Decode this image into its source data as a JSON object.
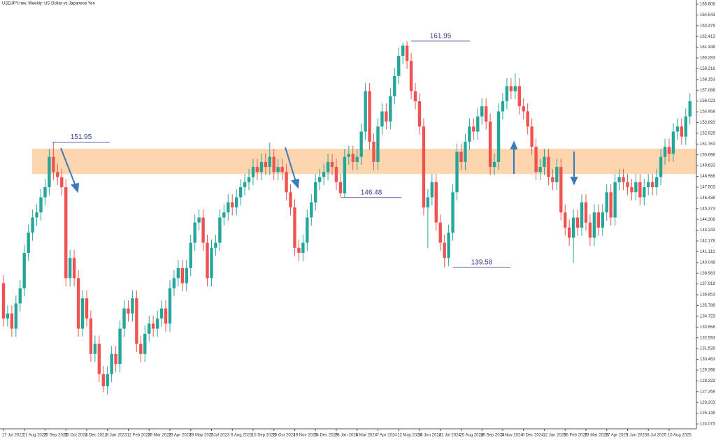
{
  "chart_data": {
    "type": "candlestick",
    "title": "USDJPY.raw, Weekly: US Dollar vs Japanese Yen",
    "categories": [
      "17 Jul 2022",
      null,
      null,
      null,
      null,
      "21 Aug 2022",
      null,
      null,
      null,
      null,
      "25 Sep 2022",
      null,
      null,
      null,
      null,
      "30 Oct 2022",
      null,
      null,
      null,
      null,
      "4 Dec 2022",
      null,
      null,
      null,
      null,
      "8 Jan 2023",
      null,
      null,
      null,
      null,
      "12 Feb 2023",
      null,
      null,
      null,
      null,
      "19 Mar 2023",
      null,
      null,
      null,
      null,
      "23 Apr 2023",
      null,
      null,
      null,
      null,
      "28 May 2023",
      null,
      null,
      null,
      null,
      "2 Jul 2023",
      null,
      null,
      null,
      null,
      "6 Aug 2023",
      null,
      null,
      null,
      null,
      "10 Sep 2023",
      null,
      null,
      null,
      null,
      "15 Oct 2023",
      null,
      null,
      null,
      null,
      "19 Nov 2023",
      null,
      null,
      null,
      null,
      "24 Dec 2023",
      null,
      null,
      null,
      null,
      "28 Jan 2024",
      null,
      null,
      null,
      null,
      "3 Mar 2024",
      null,
      null,
      null,
      null,
      "7 Apr 2024",
      null,
      null,
      null,
      null,
      "12 May 2024",
      null,
      null,
      null,
      null,
      "16 Jun 2024",
      null,
      null,
      null,
      null,
      "21 Jul 2024",
      null,
      null,
      null,
      null,
      "25 Aug 2024",
      null,
      null,
      null,
      null,
      "29 Sep 2024",
      null,
      null,
      null,
      null,
      "3 Nov 2024",
      null,
      null,
      null,
      null,
      "8 Dec 2024",
      null,
      null,
      null,
      null,
      "12 Jan 2025",
      null,
      null,
      null,
      null,
      "16 Feb 2025",
      null,
      null,
      null,
      null,
      "23 Mar 2025",
      null,
      null,
      null,
      null,
      "27 Apr 2025",
      null,
      null,
      null,
      null,
      "1 Jun 2025",
      null,
      null,
      null,
      null,
      "6 Jul 2025",
      null,
      null,
      null,
      null,
      "10 Aug 2025",
      null,
      null,
      null,
      null,
      null
    ],
    "open": [
      138,
      134.5,
      135,
      133.5,
      136,
      137.5,
      141,
      143,
      144.5,
      145,
      146.5,
      147.5,
      150.5,
      149,
      148.5,
      147.5,
      138.5,
      140.5,
      138.5,
      133.5,
      136.5,
      134.5,
      131,
      132,
      129,
      127.8,
      129,
      131,
      130,
      133.5,
      135.5,
      135,
      136.5,
      132,
      131,
      133,
      134,
      133.5,
      134.5,
      135.5,
      134,
      137.5,
      138.5,
      139.5,
      138,
      139.5,
      142,
      144,
      144.5,
      142,
      138.5,
      141.5,
      142,
      144.5,
      145,
      146,
      145.5,
      146.5,
      147.5,
      148,
      148.5,
      149.5,
      149,
      150,
      149.5,
      150.5,
      149,
      149.5,
      149,
      147,
      145.5,
      141.5,
      141,
      142,
      144.5,
      146,
      148,
      148.5,
      149,
      150,
      149.5,
      148,
      146.9,
      150.5,
      150.8,
      150,
      150.5,
      153,
      157,
      152,
      150,
      153.5,
      155,
      154,
      156.5,
      158.5,
      160.5,
      161.5,
      160,
      157,
      156,
      153.5,
      145.5,
      146.5,
      148,
      144,
      142,
      140.5,
      143,
      147,
      151,
      150,
      152,
      153.5,
      153,
      154.5,
      155.5,
      154,
      149.5,
      150,
      155,
      156,
      157.5,
      157,
      157.5,
      155.5,
      155,
      153.5,
      151.5,
      149,
      149.5,
      150.5,
      148.5,
      148,
      149.5,
      145,
      143.5,
      142.5,
      144.5,
      143.5,
      146,
      144,
      142.5,
      145,
      143.5,
      145,
      147,
      144.5,
      148,
      148.5,
      148,
      147.5,
      147,
      148,
      146.5,
      147.5,
      148,
      147.5,
      148.5,
      150.5,
      151.5,
      150.8,
      153,
      153.5,
      152.5,
      154.5
    ],
    "high": [
      138.8,
      135.8,
      135.8,
      136.8,
      138.3,
      141.8,
      143.8,
      145.3,
      145.8,
      147.3,
      148.3,
      151.3,
      151.95,
      149.8,
      149.3,
      148.3,
      141.3,
      141.3,
      139.3,
      137.3,
      137.3,
      135.3,
      132.8,
      132.8,
      129.8,
      129.8,
      131.8,
      131.8,
      134.3,
      136.3,
      136.3,
      137.3,
      137.3,
      132.8,
      133.8,
      134.8,
      134.8,
      135.3,
      136.3,
      136.3,
      138.3,
      139.3,
      140.3,
      140.3,
      140.3,
      142.8,
      144.8,
      145.3,
      145.3,
      142.8,
      142.3,
      142.8,
      145.3,
      145.8,
      146.8,
      146.8,
      147.3,
      148.3,
      148.8,
      149.3,
      150.3,
      150.3,
      150.8,
      150.8,
      151.9,
      151.3,
      150.3,
      150.3,
      149.8,
      147.8,
      146.3,
      142.3,
      142.8,
      145.3,
      146.8,
      148.8,
      149.3,
      149.8,
      150.8,
      150.8,
      150.3,
      148.8,
      151.3,
      151.6,
      151.6,
      151.3,
      153.8,
      157.8,
      157.8,
      152.8,
      154.3,
      155.8,
      155.8,
      157.3,
      159.3,
      161.3,
      161.8,
      161.95,
      160.8,
      157.8,
      156.8,
      154.3,
      147.3,
      148.8,
      148.8,
      144.8,
      142.8,
      143.8,
      147.8,
      151.8,
      151.8,
      152.8,
      154.3,
      154.3,
      155.3,
      156.3,
      156.3,
      154.8,
      150.8,
      155.8,
      156.8,
      158.3,
      158.3,
      158.8,
      158.3,
      156.3,
      155.8,
      154.3,
      152.3,
      150.3,
      151.3,
      151.3,
      149.3,
      150.3,
      150.3,
      145.8,
      144.3,
      145.3,
      145.3,
      146.8,
      146.8,
      144.8,
      145.8,
      145.8,
      145.8,
      147.8,
      147.8,
      148.8,
      149.3,
      149.3,
      148.8,
      148.3,
      148.8,
      148.8,
      148.3,
      148.8,
      148.8,
      149.3,
      151.3,
      152.3,
      152.3,
      153.8,
      154.3,
      154.3,
      155.3,
      156.8
    ],
    "low": [
      133.7,
      133.7,
      132.7,
      132.7,
      135.2,
      136.7,
      140.2,
      142.2,
      143.7,
      144.2,
      145.7,
      146.7,
      148.2,
      147.7,
      146.7,
      137.7,
      137.7,
      137.7,
      132.7,
      132.7,
      133.7,
      130.2,
      130.2,
      128.2,
      127.2,
      127,
      128.2,
      129.2,
      129.2,
      132.7,
      134.2,
      134.2,
      131.2,
      130.2,
      130.2,
      132.2,
      132.7,
      132.7,
      133.7,
      133.2,
      133.2,
      136.7,
      137.7,
      137.2,
      137.2,
      138.7,
      141.2,
      143.2,
      141.2,
      137.7,
      137.7,
      140.7,
      141.2,
      143.7,
      144.2,
      144.7,
      144.7,
      145.7,
      146.7,
      147.2,
      147.7,
      148.2,
      148.2,
      148.7,
      148.7,
      148.2,
      148.2,
      148.2,
      146.2,
      144.7,
      140.7,
      140.2,
      140.2,
      141.2,
      143.7,
      145.2,
      147.2,
      147.7,
      148.2,
      148.7,
      147.2,
      146.48,
      146.5,
      149.7,
      149.2,
      149.2,
      149.7,
      152.2,
      151.2,
      149.2,
      149.2,
      152.7,
      153.2,
      153.2,
      155.7,
      157.7,
      159.7,
      159.2,
      156.2,
      155.2,
      152.7,
      144.7,
      141.5,
      145.7,
      143.2,
      141.2,
      139.58,
      139.7,
      142.2,
      146.2,
      149.2,
      149.2,
      151.2,
      152.2,
      152.2,
      153.7,
      153.2,
      148.7,
      148.7,
      149.2,
      154.2,
      155.2,
      156.2,
      156.2,
      154.7,
      154.2,
      152.7,
      150.7,
      148.2,
      148.2,
      148.7,
      147.7,
      147.2,
      147.2,
      144.2,
      142.7,
      141.7,
      140,
      142.7,
      142.7,
      143.2,
      141.7,
      141.7,
      142.7,
      142.7,
      144.2,
      143.7,
      143.7,
      147.2,
      147.2,
      146.7,
      146.2,
      146.2,
      145.7,
      145.7,
      146.7,
      146.7,
      146.7,
      147.7,
      149.7,
      150,
      150,
      152.2,
      151.7,
      151.7,
      153.7
    ],
    "close": [
      134.5,
      135,
      133.5,
      136,
      137.5,
      141,
      143,
      144.5,
      145,
      146.5,
      147.5,
      150.5,
      149,
      148.5,
      147.5,
      138.5,
      140.5,
      138.5,
      133.5,
      136.5,
      134.5,
      131,
      132,
      129,
      127.8,
      129,
      131,
      130,
      133.5,
      135.5,
      135,
      136.5,
      132,
      131,
      133,
      134,
      133.5,
      134.5,
      135.5,
      134,
      137.5,
      138.5,
      139.5,
      138,
      139.5,
      142,
      144,
      144.5,
      142,
      138.5,
      141.5,
      142,
      144.5,
      145,
      146,
      145.5,
      146.5,
      147.5,
      148,
      148.5,
      149.5,
      149,
      150,
      149.5,
      150.5,
      149,
      149.5,
      149,
      147,
      145.5,
      141.5,
      141,
      142,
      144.5,
      146,
      148,
      148.5,
      149,
      150,
      149.5,
      148,
      146.9,
      150.5,
      150.8,
      150,
      150.5,
      153,
      157,
      152,
      150,
      153.5,
      155,
      154,
      156.5,
      158.5,
      160.5,
      161.5,
      160,
      157,
      156,
      153.5,
      145.5,
      146.5,
      148,
      144,
      142,
      140.5,
      143,
      147,
      151,
      150,
      152,
      153.5,
      153,
      154.5,
      155.5,
      154,
      149.5,
      150,
      155,
      156,
      157.5,
      157,
      157.5,
      155.5,
      155,
      153.5,
      151.5,
      149,
      149.5,
      150.5,
      148.5,
      148,
      149.5,
      145,
      143.5,
      142.5,
      144.5,
      143.5,
      146,
      144,
      142.5,
      145,
      143.5,
      145,
      147,
      144.5,
      148,
      148.5,
      148,
      147.5,
      147,
      148,
      146.5,
      147.5,
      148,
      147.5,
      148.5,
      150.5,
      151.5,
      150.8,
      153,
      153.5,
      152.5,
      154.5,
      156
    ],
    "up_color": "#26a69a",
    "down_color": "#ef5350",
    "ylim": [
      123.59,
      166.02
    ],
    "yticks": [
      165.608,
      164.543,
      163.478,
      162.413,
      161.348,
      160.283,
      159.218,
      158.153,
      157.088,
      156.023,
      154.958,
      153.893,
      152.828,
      151.763,
      150.698,
      149.633,
      148.568,
      147.503,
      146.438,
      145.373,
      144.308,
      143.243,
      142.178,
      141.113,
      140.048,
      138.983,
      137.918,
      136.853,
      135.788,
      134.723,
      133.658,
      132.593,
      131.528,
      130.463,
      129.398,
      128.333,
      127.268,
      126.203,
      125.138,
      124.073
    ],
    "grid": false,
    "zone": {
      "from": 148.8,
      "to": 151.3,
      "color": "#fdd5ae"
    },
    "annotations": [
      151.95,
      161.95,
      146.48,
      139.58
    ]
  }
}
